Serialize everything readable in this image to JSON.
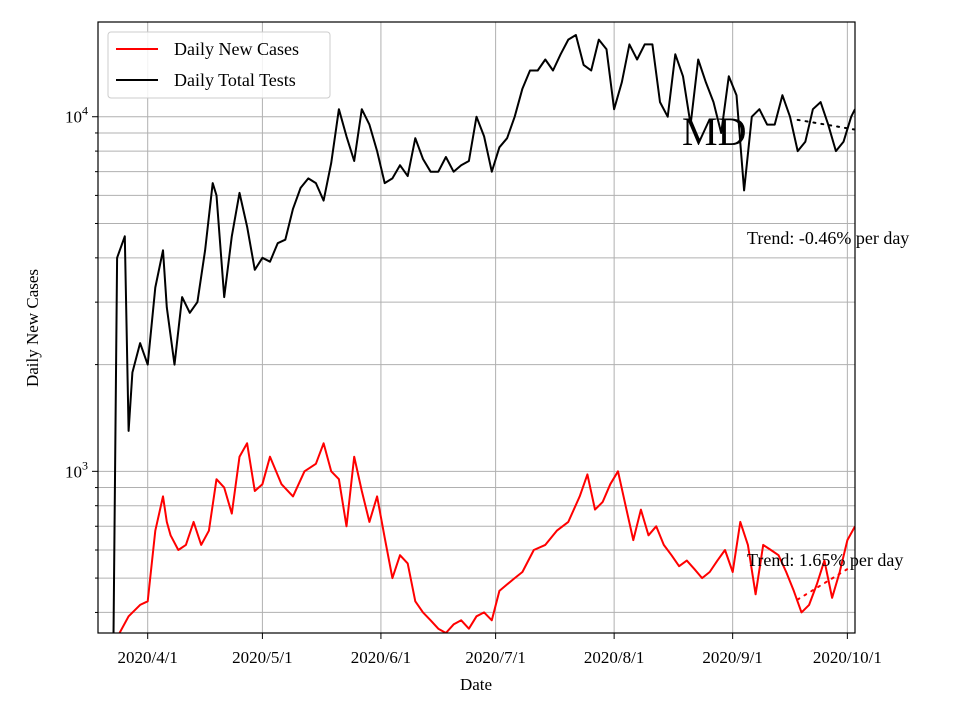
{
  "chart_data": {
    "type": "line",
    "xlabel": "Date",
    "ylabel": "Daily New Cases",
    "y_scale": "log",
    "ylim": [
      350,
      18500
    ],
    "xlim": [
      "2020-03-19",
      "2020-10-03"
    ],
    "x_ticks": [
      "2020-04-01",
      "2020-05-01",
      "2020-06-01",
      "2020-07-01",
      "2020-08-01",
      "2020-09-01",
      "2020-10-01"
    ],
    "x_tick_labels": [
      "2020/4/1",
      "2020/5/1",
      "2020/6/1",
      "2020/7/1",
      "2020/8/1",
      "2020/9/1",
      "2020/10/1"
    ],
    "y_tick_labels": [
      {
        "base": "10",
        "exp": "3",
        "value": 1000
      },
      {
        "base": "10",
        "exp": "4",
        "value": 10000
      }
    ],
    "grid": true,
    "legend_position": "upper-left",
    "annotations": {
      "state": "MD",
      "tests_trend": "Trend: -0.46% per day",
      "cases_trend": "Trend: 1.65% per day"
    },
    "series": [
      {
        "name": "Daily New Cases",
        "color": "#ff0000",
        "x": [
          "2020-03-24",
          "2020-03-27",
          "2020-03-30",
          "2020-04-01",
          "2020-04-03",
          "2020-04-05",
          "2020-04-06",
          "2020-04-07",
          "2020-04-09",
          "2020-04-11",
          "2020-04-13",
          "2020-04-15",
          "2020-04-17",
          "2020-04-19",
          "2020-04-21",
          "2020-04-23",
          "2020-04-25",
          "2020-04-27",
          "2020-04-29",
          "2020-05-01",
          "2020-05-03",
          "2020-05-06",
          "2020-05-09",
          "2020-05-12",
          "2020-05-15",
          "2020-05-17",
          "2020-05-19",
          "2020-05-21",
          "2020-05-23",
          "2020-05-25",
          "2020-05-27",
          "2020-05-29",
          "2020-05-31",
          "2020-06-02",
          "2020-06-04",
          "2020-06-06",
          "2020-06-08",
          "2020-06-10",
          "2020-06-12",
          "2020-06-14",
          "2020-06-16",
          "2020-06-18",
          "2020-06-20",
          "2020-06-22",
          "2020-06-24",
          "2020-06-26",
          "2020-06-28",
          "2020-06-30",
          "2020-07-02",
          "2020-07-04",
          "2020-07-06",
          "2020-07-08",
          "2020-07-11",
          "2020-07-14",
          "2020-07-17",
          "2020-07-20",
          "2020-07-23",
          "2020-07-25",
          "2020-07-27",
          "2020-07-29",
          "2020-07-31",
          "2020-08-02",
          "2020-08-04",
          "2020-08-06",
          "2020-08-08",
          "2020-08-10",
          "2020-08-12",
          "2020-08-14",
          "2020-08-16",
          "2020-08-18",
          "2020-08-20",
          "2020-08-22",
          "2020-08-24",
          "2020-08-26",
          "2020-08-28",
          "2020-08-30",
          "2020-09-01",
          "2020-09-03",
          "2020-09-05",
          "2020-09-07",
          "2020-09-09",
          "2020-09-11",
          "2020-09-13",
          "2020-09-15",
          "2020-09-17",
          "2020-09-19",
          "2020-09-21",
          "2020-09-23",
          "2020-09-25",
          "2020-09-27",
          "2020-09-29",
          "2020-10-01",
          "2020-10-03"
        ],
        "values": [
          340,
          390,
          420,
          430,
          680,
          850,
          720,
          660,
          600,
          620,
          720,
          620,
          680,
          950,
          900,
          760,
          1100,
          1200,
          880,
          920,
          1100,
          920,
          850,
          1000,
          1050,
          1200,
          1000,
          950,
          700,
          1100,
          880,
          720,
          850,
          650,
          500,
          580,
          550,
          430,
          400,
          380,
          360,
          350,
          370,
          380,
          360,
          390,
          400,
          380,
          460,
          480,
          500,
          520,
          600,
          620,
          680,
          720,
          850,
          980,
          780,
          820,
          920,
          1000,
          800,
          640,
          780,
          660,
          700,
          620,
          580,
          540,
          560,
          530,
          500,
          520,
          560,
          600,
          520,
          720,
          620,
          450,
          620,
          600,
          580,
          520,
          460,
          400,
          420,
          480,
          560,
          440,
          520,
          640,
          700
        ]
      },
      {
        "name": "Daily Total Tests",
        "color": "#000000",
        "x": [
          "2020-03-23",
          "2020-03-24",
          "2020-03-26",
          "2020-03-27",
          "2020-03-28",
          "2020-03-30",
          "2020-04-01",
          "2020-04-03",
          "2020-04-05",
          "2020-04-06",
          "2020-04-08",
          "2020-04-10",
          "2020-04-12",
          "2020-04-14",
          "2020-04-16",
          "2020-04-18",
          "2020-04-19",
          "2020-04-21",
          "2020-04-23",
          "2020-04-25",
          "2020-04-27",
          "2020-04-29",
          "2020-05-01",
          "2020-05-03",
          "2020-05-05",
          "2020-05-07",
          "2020-05-09",
          "2020-05-11",
          "2020-05-13",
          "2020-05-15",
          "2020-05-17",
          "2020-05-19",
          "2020-05-21",
          "2020-05-23",
          "2020-05-25",
          "2020-05-27",
          "2020-05-29",
          "2020-05-31",
          "2020-06-02",
          "2020-06-04",
          "2020-06-06",
          "2020-06-08",
          "2020-06-10",
          "2020-06-12",
          "2020-06-14",
          "2020-06-16",
          "2020-06-18",
          "2020-06-20",
          "2020-06-22",
          "2020-06-24",
          "2020-06-26",
          "2020-06-28",
          "2020-06-30",
          "2020-07-02",
          "2020-07-04",
          "2020-07-06",
          "2020-07-08",
          "2020-07-10",
          "2020-07-12",
          "2020-07-14",
          "2020-07-16",
          "2020-07-18",
          "2020-07-20",
          "2020-07-22",
          "2020-07-24",
          "2020-07-26",
          "2020-07-28",
          "2020-07-30",
          "2020-08-01",
          "2020-08-03",
          "2020-08-05",
          "2020-08-07",
          "2020-08-09",
          "2020-08-11",
          "2020-08-13",
          "2020-08-15",
          "2020-08-17",
          "2020-08-19",
          "2020-08-21",
          "2020-08-23",
          "2020-08-25",
          "2020-08-27",
          "2020-08-29",
          "2020-08-31",
          "2020-09-02",
          "2020-09-04",
          "2020-09-06",
          "2020-09-08",
          "2020-09-10",
          "2020-09-12",
          "2020-09-14",
          "2020-09-16",
          "2020-09-18",
          "2020-09-20",
          "2020-09-22",
          "2020-09-24",
          "2020-09-26",
          "2020-09-28",
          "2020-09-30",
          "2020-10-02",
          "2020-10-03"
        ],
        "values": [
          300,
          4000,
          4600,
          1300,
          1900,
          2300,
          2000,
          3300,
          4200,
          2900,
          2000,
          3100,
          2800,
          3000,
          4200,
          6500,
          6000,
          3100,
          4600,
          6100,
          4900,
          3700,
          4000,
          3900,
          4400,
          4500,
          5500,
          6300,
          6700,
          6500,
          5800,
          7400,
          10500,
          8800,
          7500,
          10500,
          9500,
          8000,
          6500,
          6700,
          7300,
          6800,
          8700,
          7600,
          7000,
          7000,
          7700,
          7000,
          7300,
          7500,
          10000,
          8800,
          7000,
          8200,
          8700,
          10000,
          12000,
          13500,
          13500,
          14500,
          13500,
          15000,
          16500,
          17000,
          14000,
          13500,
          16500,
          15500,
          10500,
          12500,
          16000,
          14500,
          16000,
          16000,
          11000,
          10000,
          15000,
          13000,
          9500,
          14500,
          12500,
          11000,
          9000,
          13000,
          11500,
          6200,
          10000,
          10500,
          9500,
          9500,
          11500,
          10000,
          8000,
          8500,
          10500,
          11000,
          9500,
          8000,
          8500,
          10000,
          10500
        ]
      }
    ],
    "trend_lines": [
      {
        "series": "Daily Total Tests",
        "x": [
          "2020-09-18",
          "2020-10-03"
        ],
        "values": [
          9800,
          9200
        ]
      },
      {
        "series": "Daily New Cases",
        "x": [
          "2020-09-18",
          "2020-10-01"
        ],
        "values": [
          435,
          530
        ]
      }
    ]
  }
}
